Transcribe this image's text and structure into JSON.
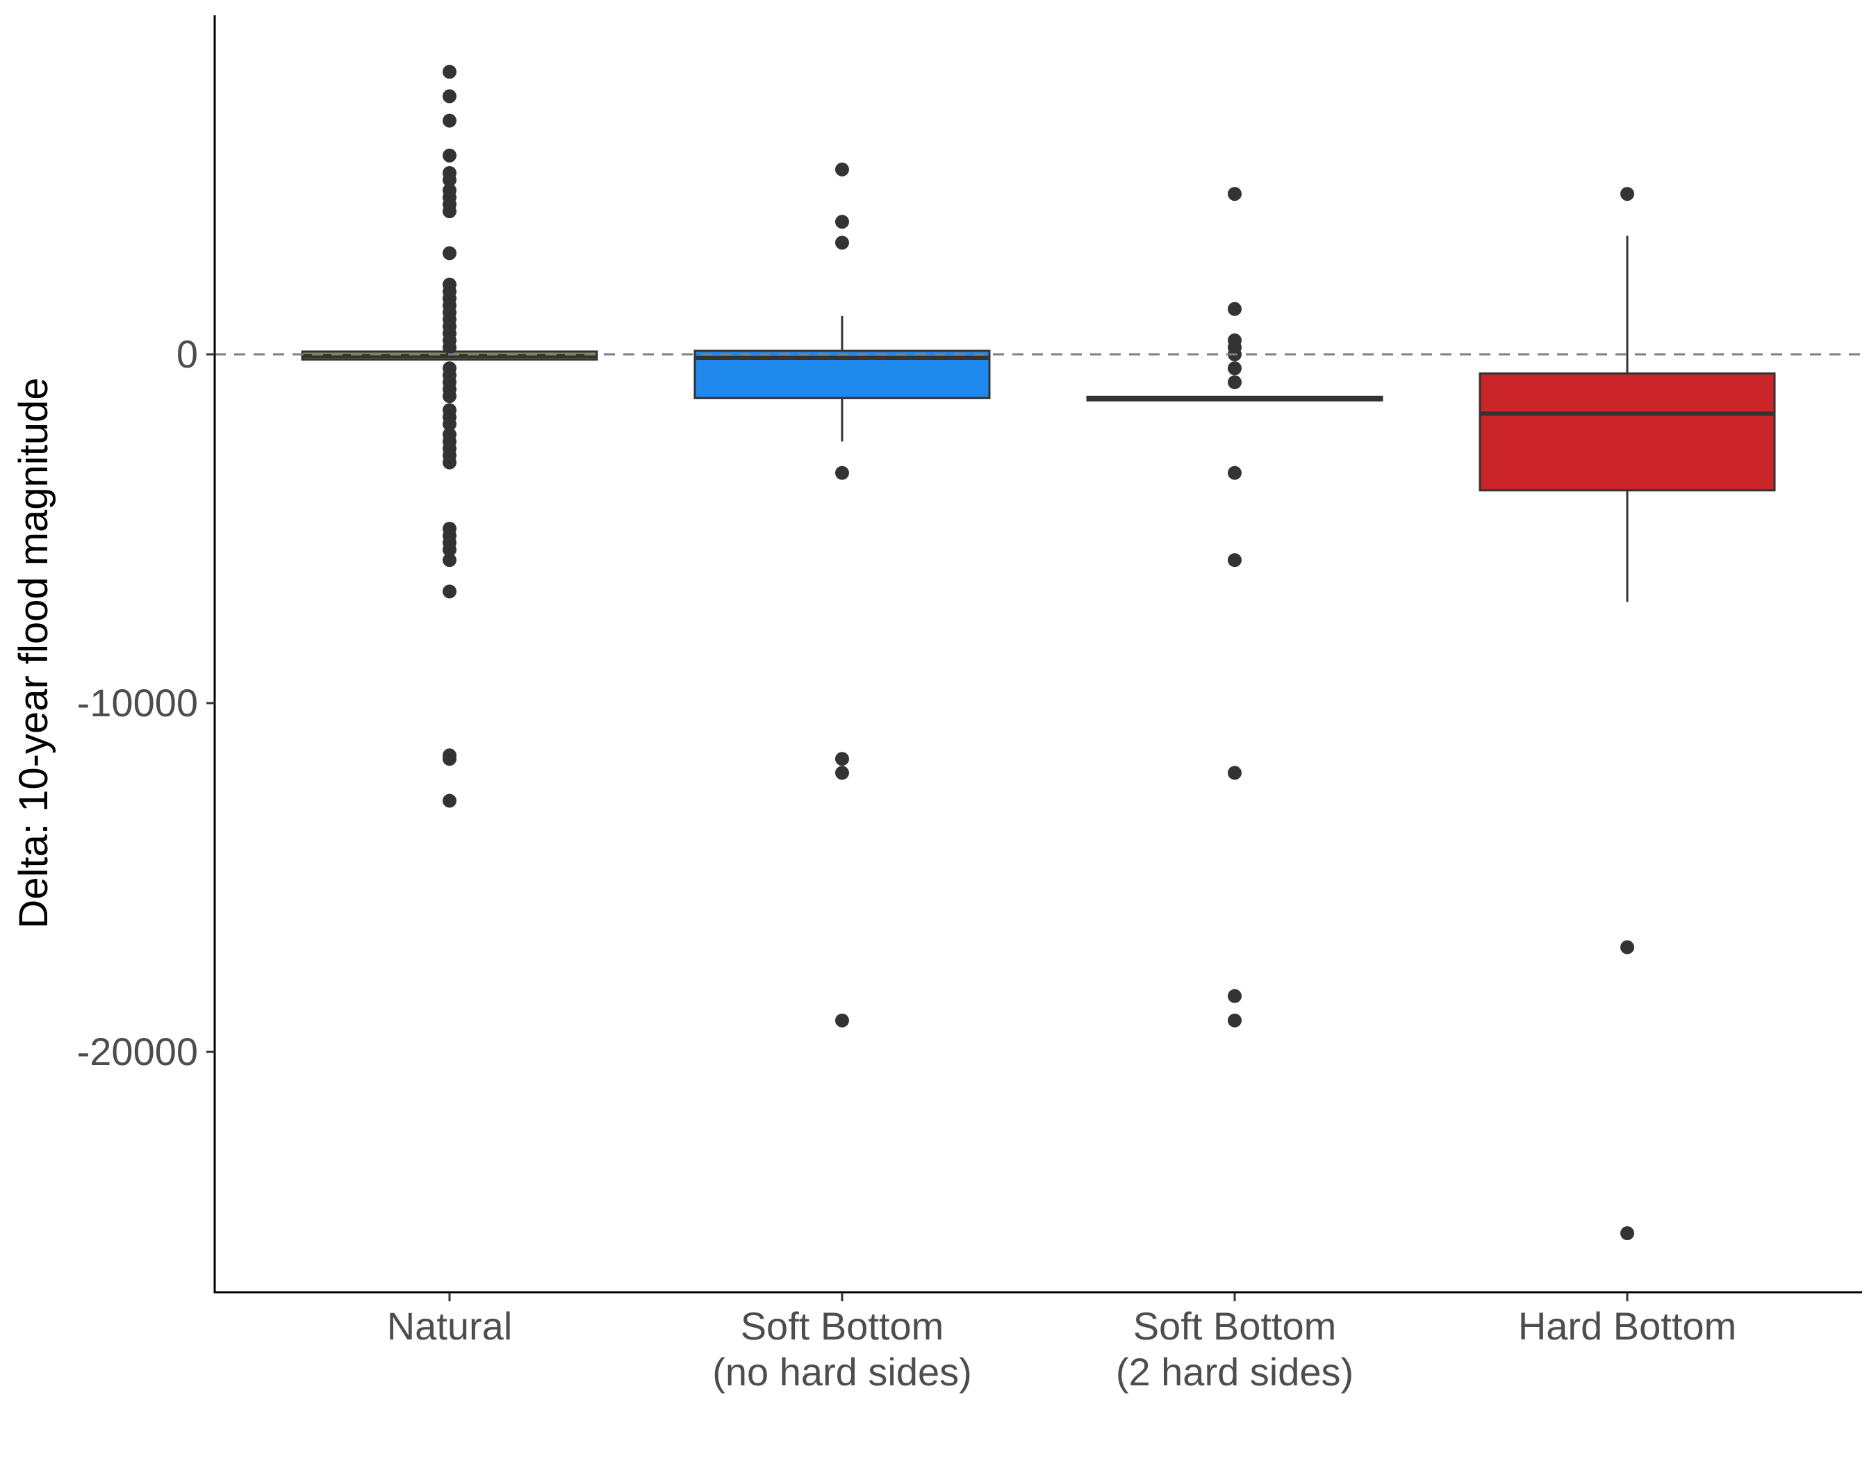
{
  "chart_data": {
    "type": "boxplot",
    "ylabel": "Delta: 10-year flood magnitude",
    "xlabel": "",
    "ylim": [
      -26500,
      9800
    ],
    "y_ticks": [
      {
        "value": 0,
        "label": "0"
      },
      {
        "value": -10000,
        "label": "-10000"
      },
      {
        "value": -20000,
        "label": "-20000"
      }
    ],
    "reference_line": {
      "y": 0,
      "style": "dashed",
      "color": "#7f7f7f"
    },
    "grid": false,
    "legend": "none",
    "categories": [
      {
        "label_lines": [
          "Natural"
        ]
      },
      {
        "label_lines": [
          "Soft Bottom",
          "(no hard sides)"
        ]
      },
      {
        "label_lines": [
          "Soft Bottom",
          "(2 hard sides)"
        ]
      },
      {
        "label_lines": [
          "Hard Bottom"
        ]
      }
    ],
    "series": [
      {
        "category": "Natural",
        "fill": "#7a9a3a",
        "q1": -150,
        "median": -50,
        "q3": 80,
        "whisker_low": -150,
        "whisker_high": 80,
        "outliers": [
          8100,
          7400,
          6700,
          5700,
          5200,
          5000,
          4700,
          4500,
          4300,
          4100,
          2900,
          2000,
          1800,
          1600,
          1400,
          1200,
          1000,
          800,
          600,
          400,
          200,
          -400,
          -600,
          -800,
          -1000,
          -1200,
          -1600,
          -1800,
          -2000,
          -2300,
          -2500,
          -2700,
          -2900,
          -3100,
          -5000,
          -5200,
          -5400,
          -5600,
          -5900,
          -6800,
          -11500,
          -11600,
          -12800
        ]
      },
      {
        "category": "Soft Bottom (no hard sides)",
        "fill": "#1e88ec",
        "q1": -1250,
        "median": -100,
        "q3": 100,
        "whisker_low": -2500,
        "whisker_high": 1100,
        "outliers": [
          5300,
          3800,
          3200,
          -3400,
          -11600,
          -12000,
          -19100
        ]
      },
      {
        "category": "Soft Bottom (2 hard sides)",
        "fill": "#e8e8e8",
        "q1": -1320,
        "median": -1270,
        "q3": -1220,
        "whisker_low": -1320,
        "whisker_high": -1220,
        "outliers": [
          4600,
          1300,
          400,
          200,
          0,
          -400,
          -800,
          -3400,
          -5900,
          -12000,
          -18400,
          -19100
        ]
      },
      {
        "category": "Hard Bottom",
        "fill": "#cc2529",
        "q1": -3900,
        "median": -1700,
        "q3": -550,
        "whisker_low": -7100,
        "whisker_high": 3400,
        "outliers": [
          4600,
          -17000,
          -25200
        ]
      }
    ]
  }
}
